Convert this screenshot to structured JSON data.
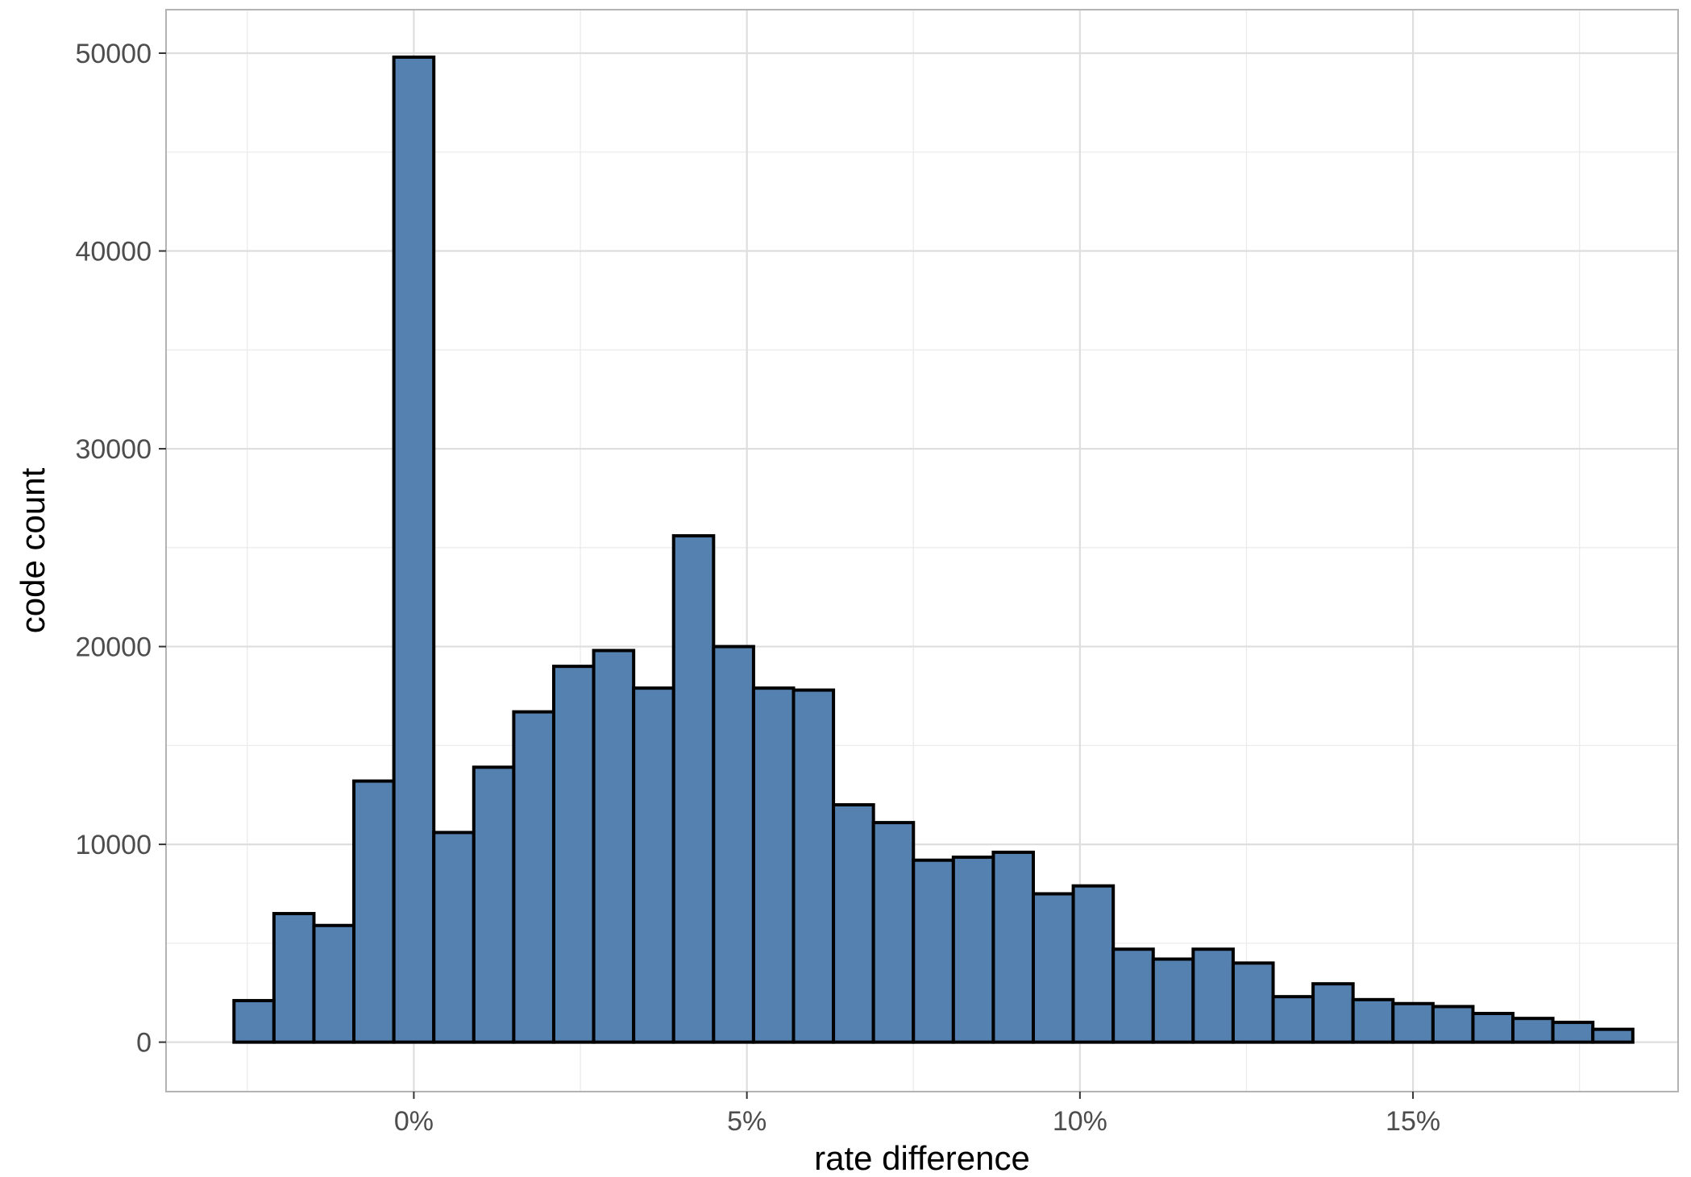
{
  "chart_data": {
    "type": "bar",
    "xlabel": "rate difference",
    "ylabel": "code count",
    "x_ticks": [
      {
        "value": 0,
        "label": "0%"
      },
      {
        "value": 5,
        "label": "5%"
      },
      {
        "value": 10,
        "label": "10%"
      },
      {
        "value": 15,
        "label": "15%"
      }
    ],
    "y_ticks": [
      {
        "value": 0,
        "label": "0"
      },
      {
        "value": 10000,
        "label": "10000"
      },
      {
        "value": 20000,
        "label": "20000"
      },
      {
        "value": 30000,
        "label": "30000"
      },
      {
        "value": 40000,
        "label": "40000"
      },
      {
        "value": 50000,
        "label": "50000"
      }
    ],
    "xlim": [
      -3.72,
      18.98
    ],
    "ylim": [
      -2500,
      52200
    ],
    "bin_width": 0.6,
    "bins": [
      {
        "x0": -2.7,
        "x1": -2.1,
        "count": 2100
      },
      {
        "x0": -2.1,
        "x1": -1.5,
        "count": 6500
      },
      {
        "x0": -1.5,
        "x1": -0.9,
        "count": 5900
      },
      {
        "x0": -0.9,
        "x1": -0.3,
        "count": 13200
      },
      {
        "x0": -0.3,
        "x1": 0.3,
        "count": 49800
      },
      {
        "x0": 0.3,
        "x1": 0.9,
        "count": 10600
      },
      {
        "x0": 0.9,
        "x1": 1.5,
        "count": 13900
      },
      {
        "x0": 1.5,
        "x1": 2.1,
        "count": 16700
      },
      {
        "x0": 2.1,
        "x1": 2.7,
        "count": 19000
      },
      {
        "x0": 2.7,
        "x1": 3.3,
        "count": 19800
      },
      {
        "x0": 3.3,
        "x1": 3.9,
        "count": 17900
      },
      {
        "x0": 3.9,
        "x1": 4.5,
        "count": 25600
      },
      {
        "x0": 4.5,
        "x1": 5.1,
        "count": 20000
      },
      {
        "x0": 5.1,
        "x1": 5.7,
        "count": 17900
      },
      {
        "x0": 5.7,
        "x1": 6.3,
        "count": 17800
      },
      {
        "x0": 6.3,
        "x1": 6.9,
        "count": 12000
      },
      {
        "x0": 6.9,
        "x1": 7.5,
        "count": 11100
      },
      {
        "x0": 7.5,
        "x1": 8.1,
        "count": 9200
      },
      {
        "x0": 8.1,
        "x1": 8.7,
        "count": 9350
      },
      {
        "x0": 8.7,
        "x1": 9.3,
        "count": 9600
      },
      {
        "x0": 9.3,
        "x1": 9.9,
        "count": 7500
      },
      {
        "x0": 9.9,
        "x1": 10.5,
        "count": 7900
      },
      {
        "x0": 10.5,
        "x1": 11.1,
        "count": 4700
      },
      {
        "x0": 11.1,
        "x1": 11.7,
        "count": 4200
      },
      {
        "x0": 11.7,
        "x1": 12.3,
        "count": 4700
      },
      {
        "x0": 12.3,
        "x1": 12.9,
        "count": 4000
      },
      {
        "x0": 12.9,
        "x1": 13.5,
        "count": 2300
      },
      {
        "x0": 13.5,
        "x1": 14.1,
        "count": 2950
      },
      {
        "x0": 14.1,
        "x1": 14.7,
        "count": 2150
      },
      {
        "x0": 14.7,
        "x1": 15.3,
        "count": 1950
      },
      {
        "x0": 15.3,
        "x1": 15.9,
        "count": 1800
      },
      {
        "x0": 15.9,
        "x1": 16.5,
        "count": 1450
      },
      {
        "x0": 16.5,
        "x1": 17.1,
        "count": 1200
      },
      {
        "x0": 17.1,
        "x1": 17.7,
        "count": 1000
      },
      {
        "x0": 17.7,
        "x1": 18.3,
        "count": 650
      }
    ],
    "grid": true,
    "legend": "none",
    "colors": {
      "bar_fill": "#5481b0",
      "bar_stroke": "#000000",
      "grid_major": "#dedede",
      "grid_minor": "#ebebeb",
      "panel_border": "#b3b3b3"
    }
  }
}
